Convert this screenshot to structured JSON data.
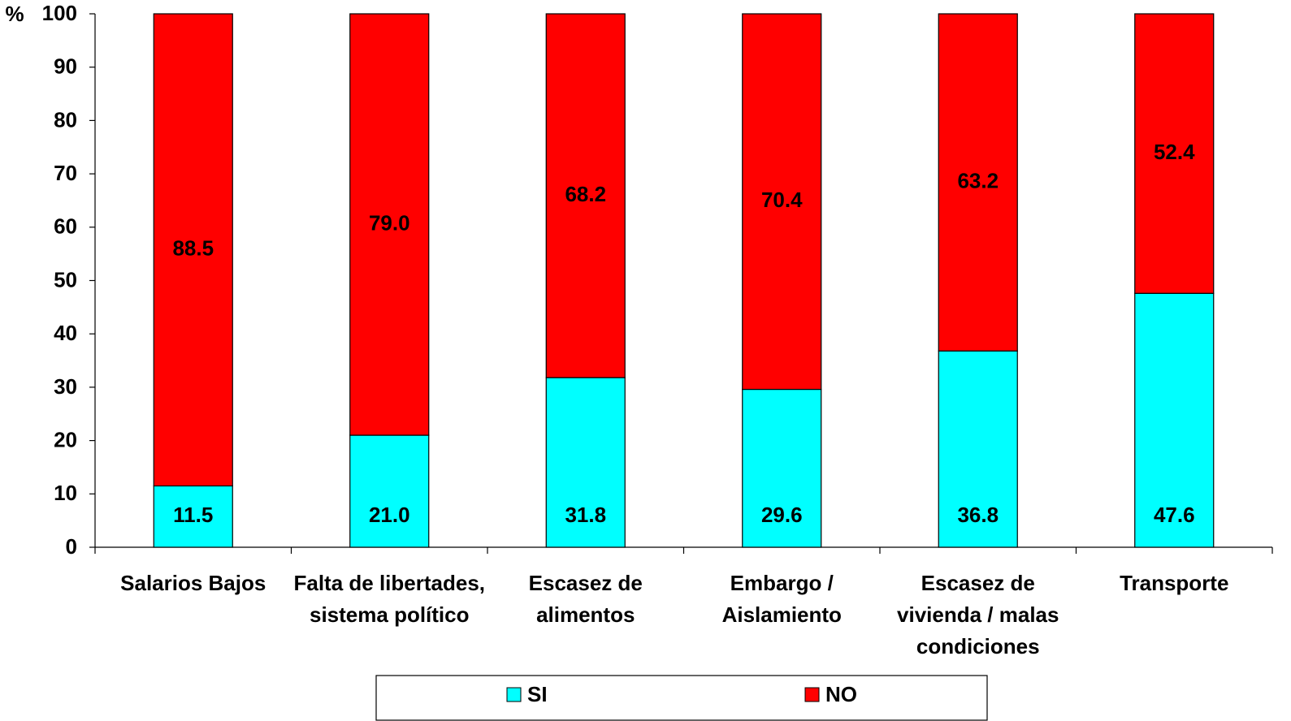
{
  "chart_data": {
    "type": "stacked_bar",
    "y_label": "%",
    "categories": [
      "Salarios Bajos",
      "Falta de libertades, sistema político",
      "Escasez de alimentos",
      "Embargo / Aislamiento",
      "Escasez de vivienda / malas condiciones",
      "Transporte"
    ],
    "series": [
      {
        "name": "SI",
        "color": "#00ffff",
        "values": [
          11.5,
          21.0,
          31.8,
          29.6,
          36.8,
          47.6
        ],
        "value_labels": [
          "11.5",
          "21.0",
          "31.8",
          "29.6",
          "36.8",
          "47.6"
        ]
      },
      {
        "name": "NO",
        "color": "#ff0000",
        "values": [
          88.5,
          79.0,
          68.2,
          70.4,
          63.2,
          52.4
        ],
        "value_labels": [
          "88.5",
          "79.0",
          "68.2",
          "70.4",
          "63.2",
          "52.4"
        ]
      }
    ],
    "ylim": [
      0,
      100
    ],
    "yticks": [
      0,
      10,
      20,
      30,
      40,
      50,
      60,
      70,
      80,
      90,
      100
    ],
    "grid": false,
    "legend": "bottom"
  }
}
